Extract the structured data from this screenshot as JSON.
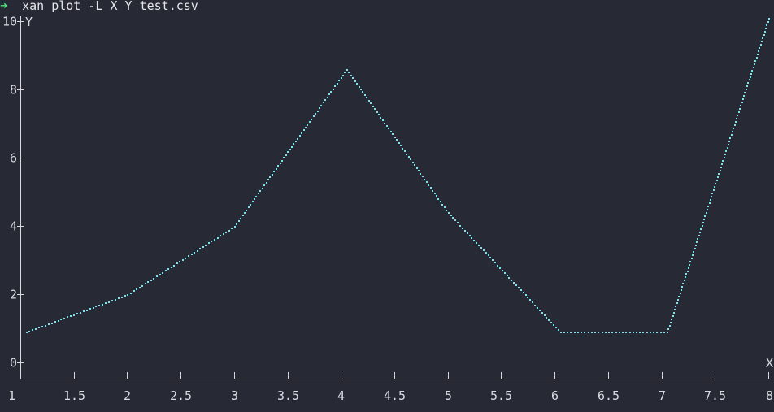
{
  "terminal": {
    "prompt_symbol": "➜",
    "command": "xan plot -L X Y test.csv"
  },
  "colors": {
    "background": "#272935",
    "axis": "#d8dae0",
    "series": "#7ee0ea",
    "prompt": "#4fe07a"
  },
  "chart_data": {
    "type": "line",
    "xlabel": "X",
    "ylabel": "Y",
    "xlim": [
      1,
      8
    ],
    "ylim": [
      0,
      10
    ],
    "x_ticks": [
      "1",
      "1.5",
      "2",
      "2.5",
      "3",
      "3.5",
      "4",
      "4.5",
      "5",
      "5.5",
      "6",
      "6.5",
      "7",
      "7.5",
      "8"
    ],
    "y_ticks": [
      "0",
      "2",
      "4",
      "6",
      "8",
      "10"
    ],
    "series": [
      {
        "x": [
          1.05,
          2,
          3,
          4.05,
          5,
          6.05,
          7.05,
          8
        ],
        "y": [
          0.9,
          2.0,
          4.0,
          8.6,
          4.4,
          0.9,
          0.9,
          10.1
        ]
      }
    ]
  }
}
